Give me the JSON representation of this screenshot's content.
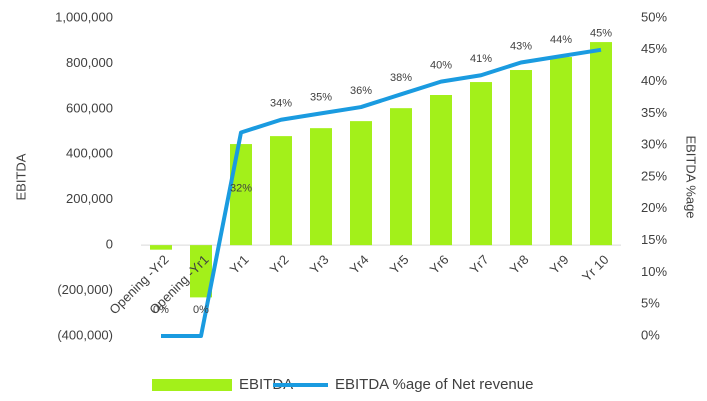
{
  "chart_data": {
    "type": "bar-line",
    "categories": [
      "Opening -Yr2",
      "Opening -Yr1",
      "Yr1",
      "Yr2",
      "Yr3",
      "Yr4",
      "Yr5",
      "Yr6",
      "Yr7",
      "Yr8",
      "Yr9",
      "Yr 10"
    ],
    "series": [
      {
        "name": "EBITDA",
        "type": "bar",
        "color": "#a3f01a",
        "values": [
          -20000,
          -230000,
          445000,
          480000,
          515000,
          546000,
          603000,
          661000,
          718000,
          771000,
          828000,
          894000
        ]
      },
      {
        "name": "EBITDA %age of Net revenue",
        "type": "line",
        "axis": "y2",
        "color": "#1a9be0",
        "values": [
          0,
          0,
          32,
          34,
          35,
          36,
          38,
          40,
          41,
          43,
          44,
          45
        ],
        "value_labels": [
          "0%",
          "0%",
          "32%",
          "34%",
          "35%",
          "36%",
          "38%",
          "40%",
          "41%",
          "43%",
          "44%",
          "45%"
        ]
      }
    ],
    "y_label": "EBITDA",
    "y2_label": "EBITDA %age",
    "ylim": [
      -400000,
      1000000
    ],
    "yticks": [
      {
        "value": -400000,
        "label": "(400,000)"
      },
      {
        "value": -200000,
        "label": "(200,000)"
      },
      0,
      {
        "value": 200000,
        "label": "200,000"
      },
      {
        "value": 400000,
        "label": "400,000"
      },
      {
        "value": 600000,
        "label": "600,000"
      },
      {
        "value": 800000,
        "label": "800,000"
      },
      {
        "value": 1000000,
        "label": "1,000,000"
      }
    ],
    "y2lim": [
      0,
      50
    ],
    "y2ticks": [
      {
        "value": 0,
        "label": "0%"
      },
      {
        "value": 5,
        "label": "5%"
      },
      {
        "value": 10,
        "label": "10%"
      },
      {
        "value": 15,
        "label": "15%"
      },
      {
        "value": 20,
        "label": "20%"
      },
      {
        "value": 25,
        "label": "25%"
      },
      {
        "value": 30,
        "label": "30%"
      },
      {
        "value": 35,
        "label": "35%"
      },
      {
        "value": 40,
        "label": "40%"
      },
      {
        "value": 45,
        "label": "45%"
      },
      {
        "value": 50,
        "label": "50%"
      }
    ],
    "legend": "bottom"
  }
}
